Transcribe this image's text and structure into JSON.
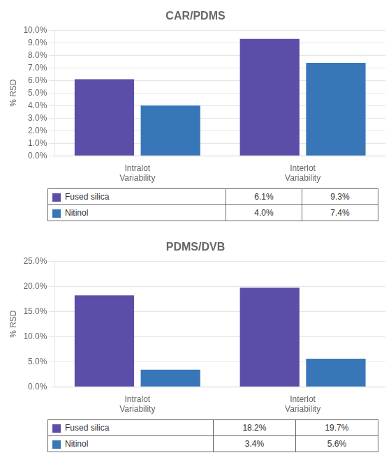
{
  "chart_data": [
    {
      "type": "bar",
      "title": "CAR/PDMS",
      "ylabel": "% RSD",
      "categories": [
        "Intralot\nVariability",
        "Interlot\nVariability"
      ],
      "series": [
        {
          "name": "Fused silica",
          "color": "#5b4ea8",
          "values": [
            0.061,
            0.093
          ],
          "value_labels": [
            "6.1%",
            "9.3%"
          ]
        },
        {
          "name": "Nitinol",
          "color": "#3777b8",
          "values": [
            0.04,
            0.074
          ],
          "value_labels": [
            "4.0%",
            "7.4%"
          ]
        }
      ],
      "ylim": [
        0,
        0.1
      ],
      "yticks": [
        {
          "value": 0,
          "label": "0.0%"
        },
        {
          "value": 0.01,
          "label": "1.0%"
        },
        {
          "value": 0.02,
          "label": "2.0%"
        },
        {
          "value": 0.03,
          "label": "3.0%"
        },
        {
          "value": 0.04,
          "label": "4.0%"
        },
        {
          "value": 0.05,
          "label": "5.0%"
        },
        {
          "value": 0.06,
          "label": "6.0%"
        },
        {
          "value": 0.07,
          "label": "7.0%"
        },
        {
          "value": 0.08,
          "label": "8.0%"
        },
        {
          "value": 0.09,
          "label": "9.0%"
        },
        {
          "value": 0.1,
          "label": "10.0%"
        }
      ],
      "grid": true
    },
    {
      "type": "bar",
      "title": "PDMS/DVB",
      "ylabel": "% RSD",
      "categories": [
        "Intralot\nVariability",
        "Interlot\nVariability"
      ],
      "series": [
        {
          "name": "Fused silica",
          "color": "#5b4ea8",
          "values": [
            0.182,
            0.197
          ],
          "value_labels": [
            "18.2%",
            "19.7%"
          ]
        },
        {
          "name": "Nitinol",
          "color": "#3777b8",
          "values": [
            0.034,
            0.056
          ],
          "value_labels": [
            "3.4%",
            "5.6%"
          ]
        }
      ],
      "ylim": [
        0,
        0.25
      ],
      "yticks": [
        {
          "value": 0,
          "label": "0.0%"
        },
        {
          "value": 0.05,
          "label": "5.0%"
        },
        {
          "value": 0.1,
          "label": "10.0%"
        },
        {
          "value": 0.15,
          "label": "15.0%"
        },
        {
          "value": 0.2,
          "label": "20.0%"
        },
        {
          "value": 0.25,
          "label": "25.0%"
        }
      ],
      "grid": true
    }
  ]
}
